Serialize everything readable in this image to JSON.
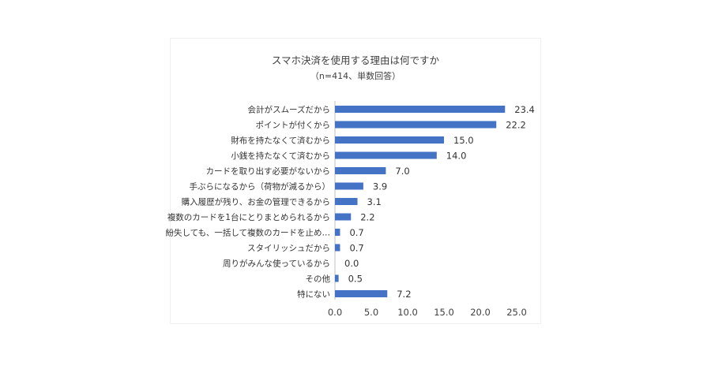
{
  "chart_data": {
    "type": "bar",
    "orientation": "horizontal",
    "title": "スマホ決済を使用する理由は何ですか",
    "subtitle": "（n=414、単数回答）",
    "categories": [
      "会計がスムーズだから",
      "ポイントが付くから",
      "財布を持たなくて済むから",
      "小銭を持たなくて済むから",
      "カードを取り出す必要がないから",
      "手ぶらになるから（荷物が減るから）",
      "購入履歴が残り、お金の管理できるから",
      "複数のカードを1台にとりまとめられるから",
      "紛失しても、一括して複数のカードを止め…",
      "スタイリッシュだから",
      "周りがみんな使っているから",
      "その他",
      "特にない"
    ],
    "values": [
      23.4,
      22.2,
      15.0,
      14.0,
      7.0,
      3.9,
      3.1,
      2.2,
      0.7,
      0.7,
      0.0,
      0.5,
      7.2
    ],
    "value_labels": [
      "23.4",
      "22.2",
      "15.0",
      "14.0",
      "7.0",
      "3.9",
      "3.1",
      "2.2",
      "0.7",
      "0.7",
      "0.0",
      "0.5",
      "7.2"
    ],
    "xticks": [
      "0.0",
      "5.0",
      "10.0",
      "15.0",
      "20.0",
      "25.0"
    ],
    "xlim": [
      0,
      25
    ],
    "bar_color": "#4472c4",
    "grid": false
  }
}
